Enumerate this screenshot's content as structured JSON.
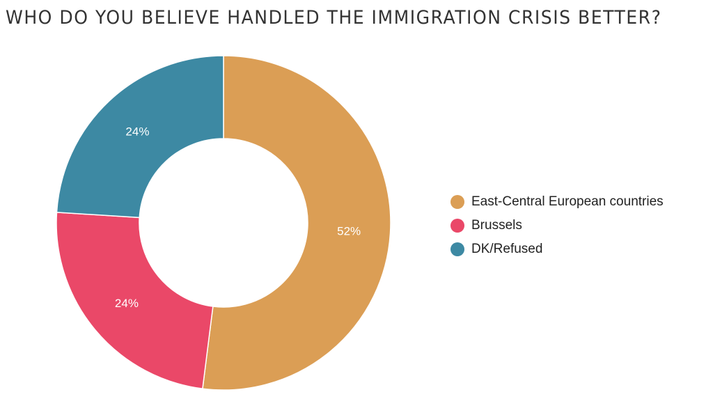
{
  "chart_data": {
    "type": "pie",
    "variant": "donut",
    "title": "WHO DO YOU BELIEVE HANDLED THE IMMIGRATION CRISIS BETTER?",
    "legend_position": "right",
    "slices": [
      {
        "label": "East-Central European countries",
        "value": 52,
        "display": "52%",
        "color": "#DB9E55"
      },
      {
        "label": "Brussels",
        "value": 24,
        "display": "24%",
        "color": "#EA4868"
      },
      {
        "label": "DK/Refused",
        "value": 24,
        "display": "24%",
        "color": "#3D89A3"
      }
    ]
  }
}
